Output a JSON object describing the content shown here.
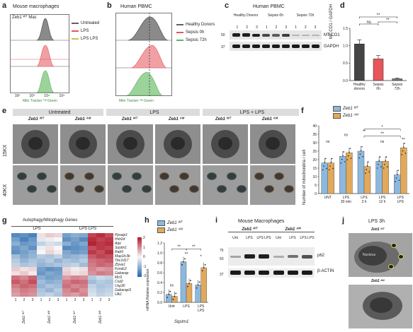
{
  "panels": {
    "a": {
      "letter": "a",
      "title": "Mouse macrophages",
      "inset_label": "Zeb1 ᵂᵀ Mac",
      "legend": [
        {
          "label": "Untreated",
          "color": "#606060"
        },
        {
          "label": "LPS",
          "color": "#e8555a"
        },
        {
          "label": "LPS LPS",
          "color": "#c8c050"
        }
      ],
      "xlabel": "Mito Tracker ᵀᴹ Green",
      "xticks": [
        "10²",
        "10³",
        "10⁴",
        "10⁵"
      ]
    },
    "b": {
      "letter": "b",
      "title": "Human PBMC",
      "legend": [
        {
          "label": "Healthy Donors",
          "color": "#606060"
        },
        {
          "label": "Sepsis 0h",
          "color": "#e8555a"
        },
        {
          "label": "Sepsis 72h",
          "color": "#5fb35f"
        }
      ],
      "xlabel": "Mito Tracker ᵀᴹ Green"
    },
    "c": {
      "letter": "c",
      "title": "Human PBMC",
      "groups": [
        "Healthy Donors",
        "Sepsis 0h",
        "Sepsis 72h"
      ],
      "lanes": [
        "1",
        "2",
        "3",
        "1",
        "2",
        "3",
        "1",
        "2",
        "3"
      ],
      "markers": [
        "50",
        "37"
      ],
      "bands": [
        "MT-CO1",
        "GAPDH"
      ]
    },
    "d": {
      "letter": "d",
      "ylabel": "MT-CO1 / GAPDH",
      "yticks": [
        "0.0",
        "0.5",
        "1.0",
        "1.5"
      ],
      "categories": [
        "Healthy donors",
        "Sepsis 0h",
        "Sepsis 72h"
      ],
      "sig": [
        "**",
        "ns",
        "**"
      ],
      "colors": [
        "#444444",
        "#e8555a",
        "#777777"
      ]
    },
    "e": {
      "letter": "e",
      "groups": [
        "Untreated",
        "LPS",
        "LPS + LPS"
      ],
      "genotypes": [
        "Zeb1 ᵂᵀ",
        "Zeb1 ᴬᴹ",
        "Zeb1 ᵂᵀ",
        "Zeb1 ᴬᴹ",
        "Zeb1 ᵂᵀ",
        "Zeb1 ᴬᴹ"
      ],
      "rows": [
        "15KX",
        "40KX"
      ]
    },
    "f": {
      "letter": "f",
      "legend": [
        {
          "label": "Zeb1 ᵂᵀ",
          "color": "#8db8de"
        },
        {
          "label": "Zeb1 ᴬᴹ",
          "color": "#e1a95a"
        }
      ],
      "ylabel": "Number of mitochondria / cell",
      "yticks": [
        "0",
        "5",
        "10",
        "15",
        "20",
        "25",
        "30",
        "35",
        "40"
      ],
      "categories": [
        "UNT",
        "LPS 30 min",
        "LPS 3 h",
        "LPS 12 h",
        "LPS LPS"
      ],
      "sig": [
        "ns",
        "ns",
        "**",
        "ns",
        "**",
        "*",
        "**"
      ]
    },
    "g": {
      "letter": "g",
      "title": "Autophagy/Mitophagy Genes",
      "col_groups": [
        "LPS",
        "LPS LPS"
      ],
      "genes": [
        "Ppsaip1",
        "Hsh2d",
        "Atpi",
        "Sqstm1",
        "Rab9",
        "Map1lc3b",
        "Tbc1d17",
        "Zfyve1",
        "Fundc2",
        "Gabarap",
        "Mcl1",
        "Csd2",
        "Usp30",
        "Gabarapl1",
        "Ulk1"
      ],
      "col_nums": [
        "1",
        "2",
        "3",
        "1",
        "2",
        "3",
        "1",
        "2",
        "3",
        "1",
        "2",
        "3"
      ],
      "col_labels": [
        "Zeb1 ᵂᵀ",
        "Zeb1 ᴬᴹ",
        "Zeb1 ᵂᵀ",
        "Zeb1 ᴬᴹ"
      ],
      "scale": [
        "2",
        "1",
        "0",
        "-1",
        "-2"
      ]
    },
    "h": {
      "letter": "h",
      "legend": [
        {
          "label": "Zeb1 ᵂᵀ",
          "color": "#8db8de"
        },
        {
          "label": "Zeb1 ᴬᴹ",
          "color": "#e1a95a"
        }
      ],
      "ylabel": "mRNA Relative expression",
      "yticks": [
        "0.0",
        "0.2",
        "0.4",
        "0.6",
        "0.8",
        "1.0",
        "1.2"
      ],
      "categories": [
        "Untr",
        "LPS",
        "LPS LPS"
      ],
      "sig": [
        "ns",
        "**",
        "**",
        "**",
        "*"
      ],
      "xgene": "Sqstm1"
    },
    "i": {
      "letter": "i",
      "title": "Mouse Macrophages",
      "genotypes": [
        "Zeb1 ᵂᵀ",
        "Zeb1 ᴬᴹ"
      ],
      "lanes": [
        "Unt",
        "LPS",
        "LPS LPS",
        "Unt",
        "LPS",
        "LPS LPS"
      ],
      "markers": [
        "75",
        "50",
        "37"
      ],
      "bands": [
        "p62",
        "β-ACTIN"
      ]
    },
    "j": {
      "letter": "j",
      "title": "LPS 3h",
      "genotypes": [
        "Zeb1 ᵂᵀ",
        "Zeb1 ᴬᴹ"
      ],
      "nucleus_label": "Nucleus"
    }
  },
  "chart_data": [
    {
      "type": "bar",
      "panel": "d",
      "categories": [
        "Healthy donors",
        "Sepsis 0h",
        "Sepsis 72h"
      ],
      "values": [
        1.05,
        0.62,
        0.05
      ],
      "errors": [
        0.12,
        0.1,
        0.02
      ],
      "ylabel": "MT-CO1 / GAPDH",
      "ylim": [
        0,
        1.5
      ]
    },
    {
      "type": "bar",
      "panel": "f",
      "categories": [
        "UNT",
        "LPS 30 min",
        "LPS 3 h",
        "LPS 12 h",
        "LPS LPS"
      ],
      "series": [
        {
          "name": "Zeb1 WT",
          "values": [
            18,
            22,
            25,
            19,
            11
          ]
        },
        {
          "name": "Zeb1 ΔM",
          "values": [
            18,
            24,
            16,
            19,
            27
          ]
        }
      ],
      "ylabel": "Number of mitochondria / cell",
      "ylim": [
        0,
        40
      ]
    },
    {
      "type": "bar",
      "panel": "h",
      "categories": [
        "Untr",
        "LPS",
        "LPS LPS"
      ],
      "series": [
        {
          "name": "Zeb1 WT",
          "values": [
            0.16,
            0.82,
            0.35
          ]
        },
        {
          "name": "Zeb1 ΔM",
          "values": [
            0.12,
            0.38,
            0.7
          ]
        }
      ],
      "ylabel": "mRNA Relative expression",
      "ylim": [
        0,
        1.2
      ]
    },
    {
      "type": "heatmap",
      "panel": "g",
      "rows": [
        "Ppsaip1",
        "Hsh2d",
        "Atpi",
        "Sqstm1",
        "Rab9",
        "Map1lc3b",
        "Tbc1d17",
        "Zfyve1",
        "Fundc2",
        "Gabarap",
        "Mcl1",
        "Csd2",
        "Usp30",
        "Gabarapl1",
        "Ulk1"
      ],
      "values": [
        [
          -1.5,
          -1.4,
          -1.6,
          0.2,
          0.4,
          0.3,
          -1.2,
          -1.0,
          -1.1,
          1.6,
          1.8,
          1.5
        ],
        [
          -1.2,
          -1.6,
          -1.3,
          -0.2,
          0.1,
          0.0,
          -1.4,
          -1.2,
          -1.5,
          1.8,
          1.6,
          1.7
        ],
        [
          -1.0,
          -1.3,
          -1.2,
          -0.5,
          -0.3,
          -0.4,
          -1.0,
          -1.3,
          -1.1,
          1.9,
          1.7,
          1.8
        ],
        [
          -1.3,
          -1.1,
          -1.4,
          -0.1,
          0.2,
          0.0,
          -1.5,
          -1.4,
          -1.3,
          1.5,
          1.7,
          1.6
        ],
        [
          -1.4,
          -1.2,
          -1.0,
          0.0,
          0.3,
          0.1,
          -1.1,
          -1.3,
          -1.2,
          1.7,
          1.5,
          1.8
        ],
        [
          -0.8,
          -1.1,
          -0.9,
          -0.6,
          -0.7,
          -0.5,
          -1.0,
          -0.9,
          -0.8,
          1.4,
          1.6,
          1.5
        ],
        [
          -0.6,
          -0.9,
          -0.7,
          -0.8,
          -0.6,
          -0.9,
          -0.7,
          -0.8,
          -0.6,
          1.2,
          1.3,
          1.4
        ],
        [
          -0.5,
          -0.7,
          -0.6,
          -0.9,
          -0.8,
          -0.7,
          -0.6,
          -0.5,
          -0.8,
          1.1,
          1.3,
          1.2
        ],
        [
          0.4,
          0.2,
          0.3,
          -1.2,
          -1.4,
          -1.3,
          0.3,
          0.1,
          0.2,
          1.0,
          0.8,
          0.9
        ],
        [
          0.2,
          0.4,
          0.1,
          -1.3,
          -1.1,
          -1.2,
          0.4,
          0.2,
          0.3,
          0.9,
          1.1,
          1.0
        ],
        [
          1.2,
          1.0,
          1.3,
          -1.0,
          -1.2,
          -1.1,
          0.8,
          1.0,
          0.9,
          -0.6,
          -0.4,
          -0.5
        ],
        [
          1.4,
          1.2,
          1.5,
          -0.8,
          -1.0,
          -0.9,
          1.1,
          1.3,
          1.2,
          -0.8,
          -0.6,
          -0.7
        ],
        [
          1.1,
          1.3,
          1.2,
          -0.9,
          -0.7,
          -0.8,
          1.2,
          1.0,
          1.1,
          -0.5,
          -0.7,
          -0.6
        ],
        [
          0.9,
          1.1,
          1.0,
          -0.7,
          -0.9,
          -0.6,
          1.0,
          1.2,
          0.9,
          -0.4,
          -0.6,
          -0.5
        ],
        [
          0.8,
          1.0,
          0.9,
          -0.6,
          -0.5,
          -0.7,
          0.9,
          0.8,
          1.0,
          -0.3,
          -0.5,
          -0.4
        ]
      ]
    }
  ]
}
